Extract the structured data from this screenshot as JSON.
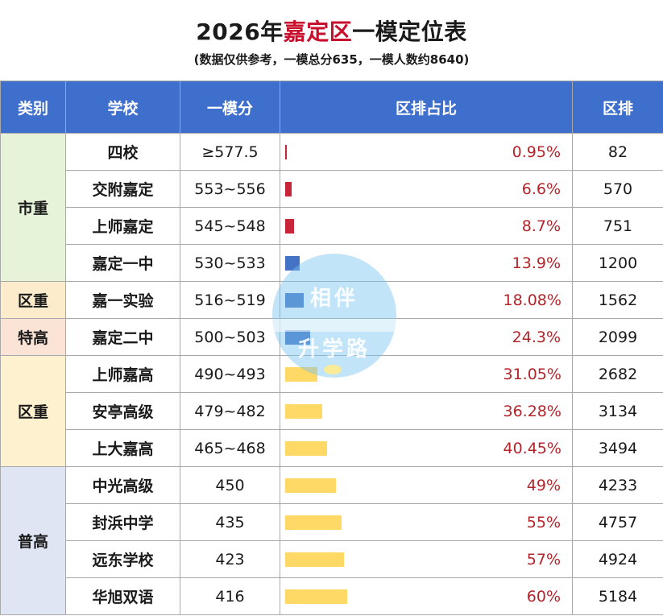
{
  "header": {
    "title_pre": "2026年",
    "title_red": "嘉定区",
    "title_post": "一模定位表",
    "subtitle": "(数据仅供参考，一模总分635，一模人数约8640)"
  },
  "columns": [
    "类别",
    "学校",
    "一模分",
    "区排占比",
    "区排"
  ],
  "groups": [
    {
      "label": "市重",
      "class": "cat-shizhong",
      "rowspan": 4
    },
    {
      "label": "区重",
      "class": "cat-quzhong1",
      "rowspan": 1
    },
    {
      "label": "特高",
      "class": "cat-tegao",
      "rowspan": 1
    },
    {
      "label": "区重",
      "class": "cat-quzhong2",
      "rowspan": 3
    },
    {
      "label": "普高",
      "class": "cat-putong",
      "rowspan": 4
    }
  ],
  "rows": [
    {
      "school": "四校",
      "score": "≥577.5",
      "pct": "0.95%",
      "pct_value": 0.95,
      "rank": "82",
      "bar_color": "#c8243a"
    },
    {
      "school": "交附嘉定",
      "score": "553~556",
      "pct": "6.6%",
      "pct_value": 6.6,
      "rank": "570",
      "bar_color": "#c8243a"
    },
    {
      "school": "上师嘉定",
      "score": "545~548",
      "pct": "8.7%",
      "pct_value": 8.7,
      "rank": "751",
      "bar_color": "#c8243a"
    },
    {
      "school": "嘉定一中",
      "score": "530~533",
      "pct": "13.9%",
      "pct_value": 13.9,
      "rank": "1200",
      "bar_color": "#4472c4"
    },
    {
      "school": "嘉一实验",
      "score": "516~519",
      "pct": "18.08%",
      "pct_value": 18.08,
      "rank": "1562",
      "bar_color": "#4472c4"
    },
    {
      "school": "嘉定二中",
      "score": "500~503",
      "pct": "24.3%",
      "pct_value": 24.3,
      "rank": "2099",
      "bar_color": "#4472c4"
    },
    {
      "school": "上师嘉高",
      "score": "490~493",
      "pct": "31.05%",
      "pct_value": 31.05,
      "rank": "2682",
      "bar_color": "#ffd966"
    },
    {
      "school": "安亭高级",
      "score": "479~482",
      "pct": "36.28%",
      "pct_value": 36.28,
      "rank": "3134",
      "bar_color": "#ffd966"
    },
    {
      "school": "上大嘉高",
      "score": "465~468",
      "pct": "40.45%",
      "pct_value": 40.45,
      "rank": "3494",
      "bar_color": "#ffd966"
    },
    {
      "school": "中光高级",
      "score": "450",
      "pct": "49%",
      "pct_value": 49,
      "rank": "4233",
      "bar_color": "#ffd966"
    },
    {
      "school": "封浜中学",
      "score": "435",
      "pct": "55%",
      "pct_value": 55,
      "rank": "4757",
      "bar_color": "#ffd966"
    },
    {
      "school": "远东学校",
      "score": "423",
      "pct": "57%",
      "pct_value": 57,
      "rank": "4924",
      "bar_color": "#ffd966"
    },
    {
      "school": "华旭双语",
      "score": "416",
      "pct": "60%",
      "pct_value": 60,
      "rank": "5184",
      "bar_color": "#ffd966"
    }
  ],
  "watermark": {
    "line1": "相伴",
    "line2": "升学路"
  }
}
